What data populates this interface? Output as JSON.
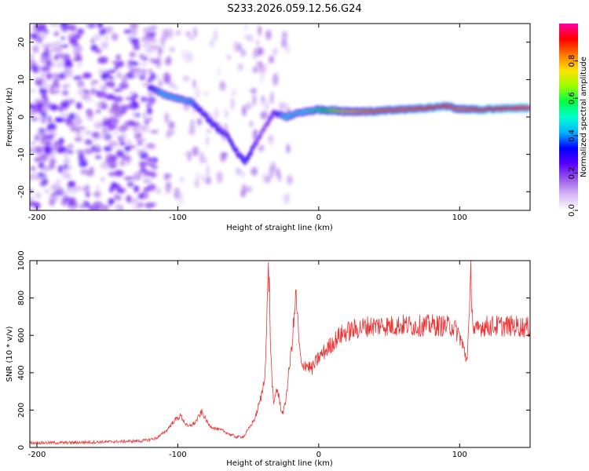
{
  "page": {
    "title": "S233.2026.059.12.56.G24"
  },
  "chart_data": [
    {
      "type": "heatmap",
      "title": "S233.2026.059.12.56.G24",
      "xlabel": "Height of straight line (km)",
      "ylabel": "Frequency (Hz)",
      "xlim": [
        -205,
        150
      ],
      "ylim": [
        -25,
        25
      ],
      "xticks": [
        -200,
        -100,
        0,
        100
      ],
      "yticks": [
        -20,
        -10,
        0,
        10,
        20
      ],
      "colorbar": {
        "label": "Normalized spectral amplitude",
        "range": [
          0,
          1
        ],
        "ticks": [
          "0.0",
          "0.2",
          "0.4",
          "0.6",
          "0.8"
        ],
        "tick_values": [
          0.0,
          0.2,
          0.4,
          0.6,
          0.8
        ],
        "colors": [
          "#ffffff",
          "#d7b8f5",
          "#9b59e8",
          "#5a00ff",
          "#0000ff",
          "#00b4ff",
          "#00ffd0",
          "#00ff40",
          "#a0ff00",
          "#ffe000",
          "#ff7800",
          "#ff0000",
          "#ff00a0"
        ]
      },
      "ridge": [
        {
          "x": -120,
          "f": 8,
          "a": 0.3
        },
        {
          "x": -110,
          "f": 6,
          "a": 0.45
        },
        {
          "x": -100,
          "f": 5,
          "a": 0.45
        },
        {
          "x": -90,
          "f": 4,
          "a": 0.4
        },
        {
          "x": -82,
          "f": 1,
          "a": 0.3
        },
        {
          "x": -75,
          "f": -2,
          "a": 0.35
        },
        {
          "x": -65,
          "f": -5,
          "a": 0.3
        },
        {
          "x": -57,
          "f": -10,
          "a": 0.3
        },
        {
          "x": -52,
          "f": -12,
          "a": 0.35
        },
        {
          "x": -40,
          "f": -4,
          "a": 0.2
        },
        {
          "x": -32,
          "f": 1,
          "a": 0.25
        },
        {
          "x": -22,
          "f": 0,
          "a": 0.5
        },
        {
          "x": -15,
          "f": 1,
          "a": 0.45
        },
        {
          "x": 0,
          "f": 2,
          "a": 0.55
        },
        {
          "x": 20,
          "f": 1.5,
          "a": 0.75
        },
        {
          "x": 40,
          "f": 1.5,
          "a": 0.85
        },
        {
          "x": 60,
          "f": 2,
          "a": 0.85
        },
        {
          "x": 80,
          "f": 2.5,
          "a": 0.9
        },
        {
          "x": 90,
          "f": 3,
          "a": 0.9
        },
        {
          "x": 100,
          "f": 2,
          "a": 0.8
        },
        {
          "x": 115,
          "f": 2,
          "a": 0.9
        },
        {
          "x": 150,
          "f": 2.5,
          "a": 0.95
        }
      ]
    },
    {
      "type": "line",
      "xlabel": "Height of straight line (km)",
      "ylabel": "SNR (10 * v/v)",
      "xlim": [
        -205,
        150
      ],
      "ylim": [
        0,
        1000
      ],
      "xticks": [
        -200,
        -100,
        0,
        100
      ],
      "yticks": [
        0,
        200,
        400,
        600,
        800,
        1000
      ],
      "line_color": "#ee3333",
      "series": [
        {
          "name": "SNR",
          "x": [
            -205,
            -180,
            -150,
            -125,
            -115,
            -108,
            -103,
            -98,
            -93,
            -88,
            -83,
            -78,
            -73,
            -68,
            -63,
            -58,
            -53,
            -48,
            -45,
            -42,
            -40,
            -38,
            -37,
            -36,
            -35,
            -34,
            -33,
            -32,
            -30,
            -28,
            -26,
            -24,
            -22,
            -20,
            -18,
            -16,
            -14,
            -12,
            -10,
            -5,
            0,
            5,
            10,
            15,
            20,
            25,
            30,
            35,
            40,
            45,
            50,
            60,
            70,
            80,
            90,
            95,
            100,
            103,
            105,
            107,
            108,
            109,
            110,
            112,
            115,
            120,
            130,
            140,
            150
          ],
          "y": [
            25,
            25,
            30,
            35,
            50,
            90,
            140,
            170,
            110,
            130,
            190,
            120,
            100,
            90,
            70,
            55,
            60,
            120,
            160,
            240,
            300,
            420,
            600,
            980,
            850,
            500,
            350,
            220,
            320,
            260,
            180,
            220,
            350,
            480,
            640,
            820,
            560,
            420,
            450,
            420,
            480,
            520,
            560,
            600,
            620,
            630,
            640,
            650,
            650,
            655,
            650,
            655,
            650,
            655,
            650,
            650,
            600,
            520,
            470,
            700,
            940,
            720,
            630,
            620,
            650,
            650,
            650,
            650,
            640
          ]
        }
      ]
    }
  ]
}
